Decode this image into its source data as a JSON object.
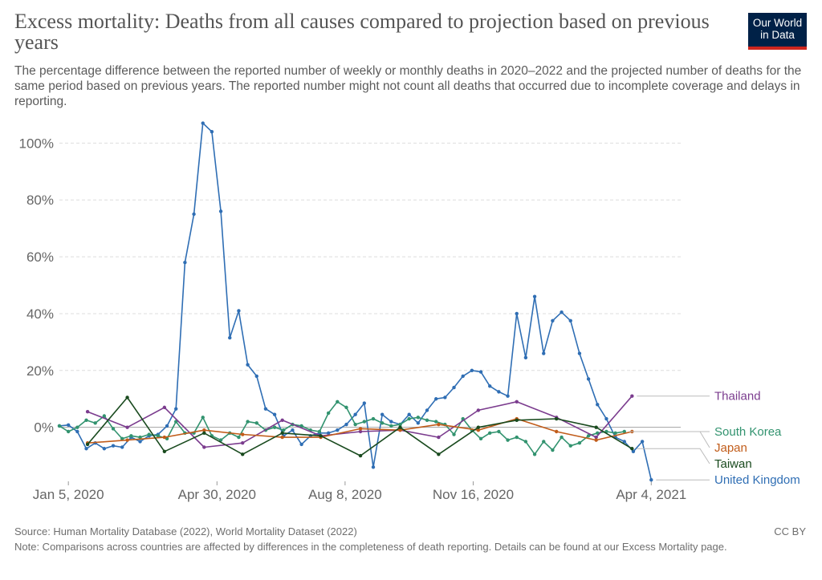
{
  "header": {
    "title": "Excess mortality: Deaths from all causes compared to projection based on previous years",
    "subtitle": "The percentage difference between the reported number of weekly or monthly deaths in 2020–2022 and the projected number of deaths for the same period based on previous years. The reported number might not count all deaths that occurred due to incomplete coverage and delays in reporting.",
    "logo_line1": "Our World",
    "logo_line2": "in Data"
  },
  "footer": {
    "source": "Source: Human Mortality Database (2022), World Mortality Dataset (2022)",
    "license": "CC BY",
    "note": "Note: Comparisons across countries are affected by differences in the completeness of death reporting. Details can be found at our Excess Mortality page."
  },
  "chart_data": {
    "type": "line",
    "x_unit": "date",
    "x_ticks": [
      {
        "label": "Jan 5, 2020",
        "date": "2020-01-05"
      },
      {
        "label": "Apr 30, 2020",
        "date": "2020-04-30"
      },
      {
        "label": "Aug 8, 2020",
        "date": "2020-08-08"
      },
      {
        "label": "Nov 16, 2020",
        "date": "2020-11-16"
      },
      {
        "label": "Apr 4, 2021",
        "date": "2021-04-04"
      }
    ],
    "x_range": [
      "2019-12-29",
      "2021-04-27"
    ],
    "y_ticks": [
      0,
      20,
      40,
      60,
      80,
      100
    ],
    "y_tick_labels": [
      "0%",
      "20%",
      "40%",
      "60%",
      "80%",
      "100%"
    ],
    "ylim": [
      -19,
      108
    ],
    "grid": "horizontal dashed",
    "legend": "right, labels at line ends",
    "series": [
      {
        "name": "United Kingdom",
        "color": "#2f6eb4",
        "markers": true,
        "points": [
          [
            "2019-12-29",
            0.5
          ],
          [
            "2020-01-05",
            0.8
          ],
          [
            "2020-01-12",
            -1.5
          ],
          [
            "2020-01-19",
            -7.5
          ],
          [
            "2020-01-26",
            -5.5
          ],
          [
            "2020-02-02",
            -7.5
          ],
          [
            "2020-02-09",
            -6.5
          ],
          [
            "2020-02-16",
            -7.0
          ],
          [
            "2020-02-23",
            -3.5
          ],
          [
            "2020-03-01",
            -5.0
          ],
          [
            "2020-03-08",
            -3.0
          ],
          [
            "2020-03-15",
            -2.5
          ],
          [
            "2020-03-22",
            0.5
          ],
          [
            "2020-03-29",
            6.5
          ],
          [
            "2020-04-05",
            58.0
          ],
          [
            "2020-04-12",
            75.0
          ],
          [
            "2020-04-19",
            107.0
          ],
          [
            "2020-04-26",
            104.0
          ],
          [
            "2020-05-03",
            76.0
          ],
          [
            "2020-05-10",
            31.5
          ],
          [
            "2020-05-17",
            41.0
          ],
          [
            "2020-05-24",
            22.0
          ],
          [
            "2020-05-31",
            18.0
          ],
          [
            "2020-06-07",
            6.5
          ],
          [
            "2020-06-14",
            4.5
          ],
          [
            "2020-06-21",
            -3.0
          ],
          [
            "2020-06-28",
            -1.0
          ],
          [
            "2020-07-05",
            -6.0
          ],
          [
            "2020-07-12",
            -3.0
          ],
          [
            "2020-07-19",
            -2.0
          ],
          [
            "2020-07-26",
            -2.0
          ],
          [
            "2020-08-02",
            -1.0
          ],
          [
            "2020-08-09",
            1.0
          ],
          [
            "2020-08-16",
            4.5
          ],
          [
            "2020-08-23",
            8.5
          ],
          [
            "2020-08-30",
            -14.0
          ],
          [
            "2020-09-06",
            4.5
          ],
          [
            "2020-09-13",
            2.0
          ],
          [
            "2020-09-20",
            1.0
          ],
          [
            "2020-09-27",
            4.5
          ],
          [
            "2020-10-04",
            1.5
          ],
          [
            "2020-10-11",
            6.0
          ],
          [
            "2020-10-18",
            10.0
          ],
          [
            "2020-10-25",
            10.5
          ],
          [
            "2020-11-01",
            14.0
          ],
          [
            "2020-11-08",
            18.0
          ],
          [
            "2020-11-15",
            20.0
          ],
          [
            "2020-11-22",
            19.5
          ],
          [
            "2020-11-29",
            14.5
          ],
          [
            "2020-12-06",
            12.5
          ],
          [
            "2020-12-13",
            11.0
          ],
          [
            "2020-12-20",
            40.0
          ],
          [
            "2020-12-27",
            24.5
          ],
          [
            "2021-01-03",
            46.0
          ],
          [
            "2021-01-10",
            26.0
          ],
          [
            "2021-01-17",
            37.5
          ],
          [
            "2021-01-24",
            40.5
          ],
          [
            "2021-01-31",
            37.5
          ],
          [
            "2021-02-07",
            26.0
          ],
          [
            "2021-02-14",
            17.0
          ],
          [
            "2021-02-21",
            8.0
          ],
          [
            "2021-02-28",
            3.0
          ],
          [
            "2021-03-07",
            -3.5
          ],
          [
            "2021-03-14",
            -5.0
          ],
          [
            "2021-03-21",
            -8.5
          ],
          [
            "2021-03-28",
            -5.0
          ],
          [
            "2021-04-04",
            -18.5
          ]
        ]
      },
      {
        "name": "South Korea",
        "color": "#32936f",
        "markers": true,
        "points": [
          [
            "2019-12-29",
            0.5
          ],
          [
            "2020-01-05",
            -1.5
          ],
          [
            "2020-01-12",
            0.0
          ],
          [
            "2020-01-19",
            2.5
          ],
          [
            "2020-01-26",
            1.5
          ],
          [
            "2020-02-02",
            4.0
          ],
          [
            "2020-02-09",
            -0.5
          ],
          [
            "2020-02-16",
            -4.0
          ],
          [
            "2020-02-23",
            -3.0
          ],
          [
            "2020-03-01",
            -3.5
          ],
          [
            "2020-03-08",
            -2.5
          ],
          [
            "2020-03-15",
            -3.0
          ],
          [
            "2020-03-22",
            -4.0
          ],
          [
            "2020-03-29",
            2.0
          ],
          [
            "2020-04-05",
            -2.0
          ],
          [
            "2020-04-12",
            -2.0
          ],
          [
            "2020-04-19",
            3.5
          ],
          [
            "2020-04-26",
            -3.0
          ],
          [
            "2020-05-03",
            -4.5
          ],
          [
            "2020-05-10",
            -2.0
          ],
          [
            "2020-05-17",
            -3.5
          ],
          [
            "2020-05-24",
            2.0
          ],
          [
            "2020-05-31",
            1.5
          ],
          [
            "2020-06-07",
            -1.0
          ],
          [
            "2020-06-14",
            0.0
          ],
          [
            "2020-06-21",
            -1.0
          ],
          [
            "2020-06-28",
            1.0
          ],
          [
            "2020-07-05",
            0.5
          ],
          [
            "2020-07-12",
            -1.0
          ],
          [
            "2020-07-19",
            -1.5
          ],
          [
            "2020-07-26",
            5.0
          ],
          [
            "2020-08-02",
            9.0
          ],
          [
            "2020-08-09",
            7.0
          ],
          [
            "2020-08-16",
            1.0
          ],
          [
            "2020-08-23",
            2.0
          ],
          [
            "2020-08-30",
            3.0
          ],
          [
            "2020-09-06",
            1.5
          ],
          [
            "2020-09-13",
            0.5
          ],
          [
            "2020-09-20",
            1.0
          ],
          [
            "2020-09-27",
            3.0
          ],
          [
            "2020-10-04",
            3.5
          ],
          [
            "2020-10-11",
            2.5
          ],
          [
            "2020-10-18",
            2.0
          ],
          [
            "2020-10-25",
            1.0
          ],
          [
            "2020-11-01",
            -2.5
          ],
          [
            "2020-11-08",
            3.0
          ],
          [
            "2020-11-15",
            -1.0
          ],
          [
            "2020-11-22",
            -4.0
          ],
          [
            "2020-11-29",
            -2.0
          ],
          [
            "2020-12-06",
            -1.5
          ],
          [
            "2020-12-13",
            -4.5
          ],
          [
            "2020-12-20",
            -3.5
          ],
          [
            "2020-12-27",
            -5.0
          ],
          [
            "2021-01-03",
            -9.5
          ],
          [
            "2021-01-10",
            -5.0
          ],
          [
            "2021-01-17",
            -8.0
          ],
          [
            "2021-01-24",
            -3.5
          ],
          [
            "2021-01-31",
            -6.5
          ],
          [
            "2021-02-07",
            -5.5
          ],
          [
            "2021-02-14",
            -3.0
          ],
          [
            "2021-02-21",
            -2.0
          ],
          [
            "2021-02-28",
            -1.5
          ],
          [
            "2021-03-07",
            -2.0
          ],
          [
            "2021-03-14",
            -1.5
          ]
        ]
      },
      {
        "name": "Thailand",
        "color": "#7b3c8e",
        "markers": true,
        "points": [
          [
            "2020-01-20",
            5.5
          ],
          [
            "2020-02-20",
            0.0
          ],
          [
            "2020-03-20",
            7.0
          ],
          [
            "2020-04-20",
            -7.0
          ],
          [
            "2020-05-20",
            -5.5
          ],
          [
            "2020-06-20",
            2.5
          ],
          [
            "2020-07-20",
            -3.0
          ],
          [
            "2020-08-20",
            -1.5
          ],
          [
            "2020-09-20",
            -1.0
          ],
          [
            "2020-10-20",
            -3.5
          ],
          [
            "2020-11-20",
            6.0
          ],
          [
            "2020-12-20",
            9.0
          ],
          [
            "2021-01-20",
            3.5
          ],
          [
            "2021-02-20",
            -3.5
          ],
          [
            "2021-03-20",
            11.0
          ]
        ]
      },
      {
        "name": "Japan",
        "color": "#c15c1a",
        "markers": true,
        "points": [
          [
            "2020-01-20",
            -5.5
          ],
          [
            "2020-02-20",
            -4.5
          ],
          [
            "2020-03-20",
            -3.5
          ],
          [
            "2020-04-20",
            -1.0
          ],
          [
            "2020-05-20",
            -2.5
          ],
          [
            "2020-06-20",
            -3.5
          ],
          [
            "2020-07-20",
            -3.5
          ],
          [
            "2020-08-20",
            -0.5
          ],
          [
            "2020-09-20",
            -1.0
          ],
          [
            "2020-10-20",
            1.0
          ],
          [
            "2020-11-20",
            -1.0
          ],
          [
            "2020-12-20",
            3.0
          ],
          [
            "2021-01-20",
            -1.5
          ],
          [
            "2021-02-20",
            -4.5
          ],
          [
            "2021-03-20",
            -1.5
          ]
        ]
      },
      {
        "name": "Taiwan",
        "color": "#194a1e",
        "markers": true,
        "points": [
          [
            "2020-01-20",
            -6.0
          ],
          [
            "2020-02-20",
            10.5
          ],
          [
            "2020-03-20",
            -8.5
          ],
          [
            "2020-04-20",
            -2.0
          ],
          [
            "2020-05-20",
            -9.5
          ],
          [
            "2020-06-20",
            -2.0
          ],
          [
            "2020-07-20",
            -3.0
          ],
          [
            "2020-08-20",
            -10.0
          ],
          [
            "2020-09-20",
            0.0
          ],
          [
            "2020-10-20",
            -9.5
          ],
          [
            "2020-11-20",
            0.0
          ],
          [
            "2020-12-20",
            2.5
          ],
          [
            "2021-01-20",
            3.0
          ],
          [
            "2021-02-20",
            0.0
          ],
          [
            "2021-03-20",
            -7.5
          ]
        ]
      }
    ],
    "end_labels": [
      {
        "series": "Thailand",
        "text": "Thailand",
        "color": "#7b3c8e"
      },
      {
        "series": "South Korea",
        "text": "South Korea",
        "color": "#32936f"
      },
      {
        "series": "Japan",
        "text": "Japan",
        "color": "#c15c1a"
      },
      {
        "series": "Taiwan",
        "text": "Taiwan",
        "color": "#194a1e"
      },
      {
        "series": "United Kingdom",
        "text": "United Kingdom",
        "color": "#2f6eb4"
      }
    ]
  }
}
